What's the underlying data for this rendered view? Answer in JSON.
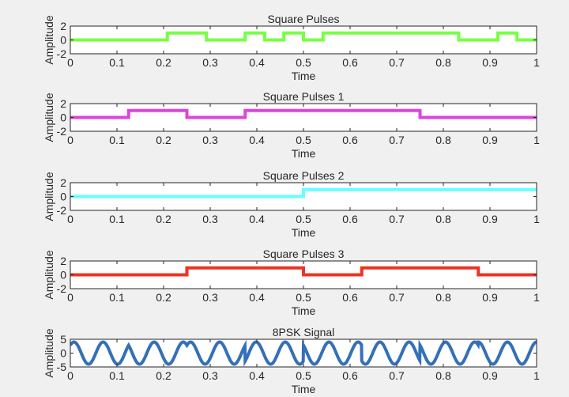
{
  "chart_data": [
    {
      "type": "line",
      "title": "Square Pulses",
      "xlabel": "Time",
      "ylabel": "Amplitude",
      "xlim": [
        0,
        1
      ],
      "ylim": [
        -2,
        2
      ],
      "xticks": [
        "0",
        "0.1",
        "0.2",
        "0.3",
        "0.4",
        "0.5",
        "0.6",
        "0.7",
        "0.8",
        "0.9",
        "1"
      ],
      "yticks": [
        "2",
        "0",
        "-2"
      ],
      "yticks_values": [
        2,
        0,
        -2
      ],
      "color": "#77ff44",
      "series": [
        {
          "name": "Square Pulses",
          "kind": "step",
          "x": [
            0,
            0.208,
            0.292,
            0.375,
            0.417,
            0.458,
            0.5,
            0.542,
            0.833,
            0.917,
            0.958,
            1
          ],
          "values": [
            0,
            1,
            0,
            1,
            0,
            1,
            0,
            1,
            0,
            1,
            0,
            0
          ]
        }
      ]
    },
    {
      "type": "line",
      "title": "Square Pulses 1",
      "xlabel": "Time",
      "ylabel": "Amplitude",
      "xlim": [
        0,
        1
      ],
      "ylim": [
        -2,
        2
      ],
      "xticks": [
        "0",
        "0.1",
        "0.2",
        "0.3",
        "0.4",
        "0.5",
        "0.6",
        "0.7",
        "0.8",
        "0.9",
        "1"
      ],
      "yticks": [
        "2",
        "0",
        "-2"
      ],
      "yticks_values": [
        2,
        0,
        -2
      ],
      "color": "#dd44dd",
      "series": [
        {
          "name": "Square Pulses 1",
          "kind": "step",
          "x": [
            0,
            0.125,
            0.25,
            0.375,
            0.75,
            1
          ],
          "values": [
            0,
            1,
            0,
            1,
            0,
            0
          ]
        }
      ]
    },
    {
      "type": "line",
      "title": "Square Pulses 2",
      "xlabel": "Time",
      "ylabel": "Amplitude",
      "xlim": [
        0,
        1
      ],
      "ylim": [
        -2,
        2
      ],
      "xticks": [
        "0",
        "0.1",
        "0.2",
        "0.3",
        "0.4",
        "0.5",
        "0.6",
        "0.7",
        "0.8",
        "0.9",
        "1"
      ],
      "yticks": [
        "2",
        "0",
        "-2"
      ],
      "yticks_values": [
        2,
        0,
        -2
      ],
      "color": "#66ffff",
      "series": [
        {
          "name": "Square Pulses 2",
          "kind": "step",
          "x": [
            0,
            0.5,
            1
          ],
          "values": [
            0,
            1,
            1
          ]
        }
      ]
    },
    {
      "type": "line",
      "title": "Square Pulses 3",
      "xlabel": "Time",
      "ylabel": "Amplitude",
      "xlim": [
        0,
        1
      ],
      "ylim": [
        -2,
        2
      ],
      "xticks": [
        "0",
        "0.1",
        "0.2",
        "0.3",
        "0.4",
        "0.5",
        "0.6",
        "0.7",
        "0.8",
        "0.9",
        "1"
      ],
      "yticks": [
        "2",
        "0",
        "-2"
      ],
      "yticks_values": [
        2,
        0,
        -2
      ],
      "color": "#ee3322",
      "series": [
        {
          "name": "Square Pulses 3",
          "kind": "step",
          "x": [
            0,
            0.25,
            0.5,
            0.625,
            0.875,
            1
          ],
          "values": [
            0,
            1,
            0,
            1,
            0,
            0
          ]
        }
      ]
    },
    {
      "type": "line",
      "title": "8PSK Signal",
      "xlabel": "Time",
      "ylabel": "Amplitude",
      "xlim": [
        0,
        1
      ],
      "ylim": [
        -5,
        5
      ],
      "xticks": [
        "0",
        "0.1",
        "0.2",
        "0.3",
        "0.4",
        "0.5",
        "0.6",
        "0.7",
        "0.8",
        "0.9",
        "1"
      ],
      "yticks": [
        "5",
        "0",
        "-5"
      ],
      "yticks_values": [
        5,
        0,
        -5
      ],
      "color": "#3370b8",
      "series": [
        {
          "name": "8PSK Signal",
          "kind": "psk",
          "amplitude": 4,
          "frequency": 16,
          "symbol_boundaries": [
            0,
            0.125,
            0.25,
            0.375,
            0.5,
            0.625,
            0.75,
            0.875,
            1
          ],
          "phases_deg": [
            45,
            135,
            45,
            315,
            135,
            225,
            135,
            90
          ]
        }
      ]
    }
  ]
}
